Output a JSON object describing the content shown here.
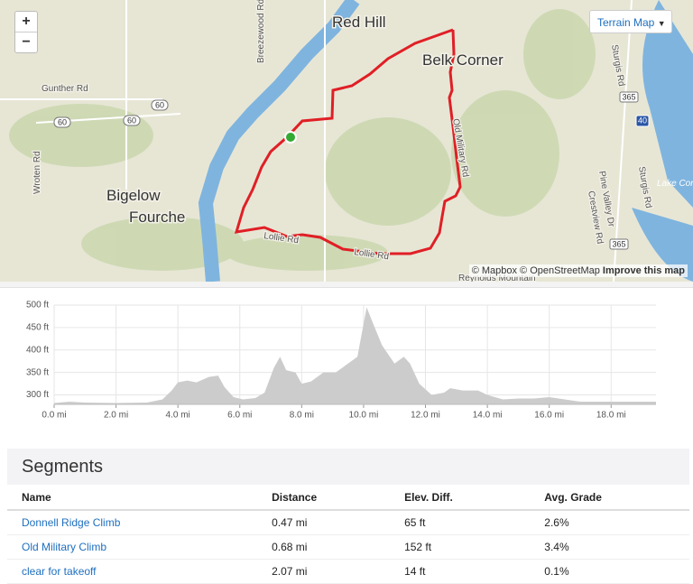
{
  "map": {
    "zoom_in": "+",
    "zoom_out": "−",
    "layer_button": "Terrain Map",
    "labels": [
      "Red Hill",
      "Belk Corner",
      "Gunther Rd",
      "Breezewood Rd",
      "Bigelow",
      "Fourche",
      "Wroten Rd",
      "Old Military Rd",
      "Lollie Rd",
      "Lollie Rd",
      "Sturgis Rd",
      "Sturgis Rd",
      "Crestview Rd",
      "Pine Valley Dr",
      "Lake Con",
      "Reynolds Mountain"
    ],
    "shields": [
      "60",
      "60",
      "60",
      "365",
      "40",
      "365"
    ],
    "attribution": "© Mapbox © OpenStreetMap",
    "improve": "Improve this map"
  },
  "chart_data": {
    "type": "area",
    "x": [
      0,
      0.5,
      1,
      2,
      3,
      3.5,
      3.8,
      4,
      4.3,
      4.6,
      5,
      5.3,
      5.5,
      5.8,
      6.1,
      6.5,
      6.8,
      7.1,
      7.3,
      7.5,
      7.8,
      8,
      8.3,
      8.7,
      9.1,
      9.5,
      9.8,
      10.1,
      10.3,
      10.6,
      11,
      11.3,
      11.5,
      11.8,
      12.2,
      12.6,
      12.8,
      13.2,
      13.7,
      14,
      14.5,
      15,
      15.5,
      16,
      16.5,
      17,
      18,
      19,
      19.45
    ],
    "values": [
      282,
      285,
      283,
      282,
      283,
      290,
      310,
      328,
      332,
      328,
      340,
      343,
      318,
      295,
      290,
      293,
      305,
      360,
      385,
      355,
      350,
      325,
      330,
      350,
      350,
      370,
      385,
      495,
      460,
      410,
      370,
      385,
      370,
      325,
      300,
      305,
      315,
      310,
      310,
      300,
      290,
      292,
      292,
      295,
      290,
      285,
      285,
      285,
      285
    ],
    "color": "#cccccc",
    "xlim": [
      0,
      19.45
    ],
    "ylim": [
      279,
      500
    ],
    "xticks": [
      {
        "value": 0,
        "label": "0.0 mi"
      },
      {
        "value": 2,
        "label": "2.0 mi"
      },
      {
        "value": 4,
        "label": "4.0 mi"
      },
      {
        "value": 6,
        "label": "6.0 mi"
      },
      {
        "value": 8,
        "label": "8.0 mi"
      },
      {
        "value": 10,
        "label": "10.0 mi"
      },
      {
        "value": 12,
        "label": "12.0 mi"
      },
      {
        "value": 14,
        "label": "14.0 mi"
      },
      {
        "value": 16,
        "label": "16.0 mi"
      },
      {
        "value": 18,
        "label": "18.0 mi"
      }
    ],
    "yticks": [
      {
        "value": 300,
        "label": "300 ft"
      },
      {
        "value": 350,
        "label": "350 ft"
      },
      {
        "value": 400,
        "label": "400 ft"
      },
      {
        "value": 450,
        "label": "450 ft"
      },
      {
        "value": 500,
        "label": "500 ft"
      }
    ],
    "grid": true
  },
  "segments": {
    "title": "Segments",
    "columns": [
      "Name",
      "Distance",
      "Elev. Diff.",
      "Avg. Grade"
    ],
    "rows": [
      [
        "Donnell Ridge Climb",
        "0.47 mi",
        "65 ft",
        "2.6%"
      ],
      [
        "Old Military Climb",
        "0.68 mi",
        "152 ft",
        "3.4%"
      ],
      [
        "clear for takeoff",
        "2.07 mi",
        "14 ft",
        "0.1%"
      ]
    ]
  }
}
